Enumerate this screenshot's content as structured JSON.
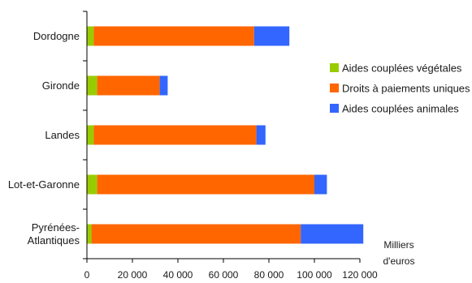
{
  "chart_data": {
    "type": "bar",
    "orientation": "horizontal",
    "stacked": true,
    "categories": [
      "Dordogne",
      "Gironde",
      "Landes",
      "Lot-et-Garonne",
      "Pyrénées-Atlantiques"
    ],
    "category_lines": [
      [
        "Dordogne"
      ],
      [
        "Gironde"
      ],
      [
        "Landes"
      ],
      [
        "Lot-et-Garonne"
      ],
      [
        "Pyrénées-",
        "Atlantiques"
      ]
    ],
    "series": [
      {
        "name": "Aides couplées végétales",
        "color": "#99cc00",
        "values": [
          3000,
          4500,
          3000,
          4500,
          2000
        ]
      },
      {
        "name": "Droits à paiements uniques",
        "color": "#ff6600",
        "values": [
          70500,
          27500,
          71500,
          95500,
          92000
        ]
      },
      {
        "name": "Aides couplées animales",
        "color": "#3366ff",
        "values": [
          15500,
          3500,
          4000,
          5500,
          27500
        ]
      }
    ],
    "xlim": [
      0,
      120000
    ],
    "xticks": [
      0,
      20000,
      40000,
      60000,
      80000,
      100000,
      120000
    ],
    "xtick_labels": [
      "0",
      "20 000",
      "40 000",
      "60 000",
      "80 000",
      "100 000",
      "120 000"
    ],
    "unit_label_lines": [
      "Milliers",
      "d'euros"
    ],
    "legend_position": "right",
    "grid": false
  }
}
